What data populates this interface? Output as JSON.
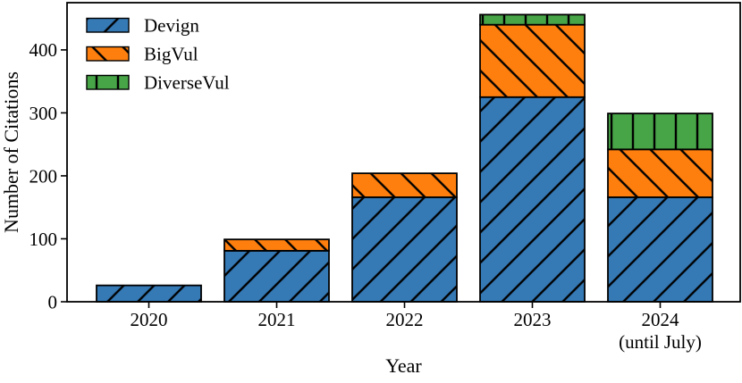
{
  "figure": {
    "background": "#ffffff",
    "edge_color": "#000000",
    "hatch_color": "#000000"
  },
  "chart_data": {
    "type": "bar",
    "stacked": true,
    "title": "",
    "xlabel": "Year",
    "ylabel": "Number of Citations",
    "categories": [
      "2020",
      "2021",
      "2022",
      "2023",
      "2024\n(until July)"
    ],
    "series": [
      {
        "name": "Devign",
        "color": "#3579b5",
        "hatch": "/",
        "values": [
          26,
          81,
          166,
          325,
          166
        ]
      },
      {
        "name": "BigVul",
        "color": "#ff7f0e",
        "hatch": "\\",
        "values": [
          0,
          18,
          38,
          115,
          76
        ]
      },
      {
        "name": "DiverseVul",
        "color": "#47a447",
        "hatch": "|",
        "values": [
          0,
          0,
          0,
          16,
          57
        ]
      }
    ],
    "totals": [
      26,
      99,
      204,
      456,
      299
    ],
    "ylim": [
      0,
      475
    ],
    "yticks": [
      0,
      100,
      200,
      300,
      400
    ],
    "grid": false,
    "legend_position": "upper left",
    "legend_frame": false
  }
}
